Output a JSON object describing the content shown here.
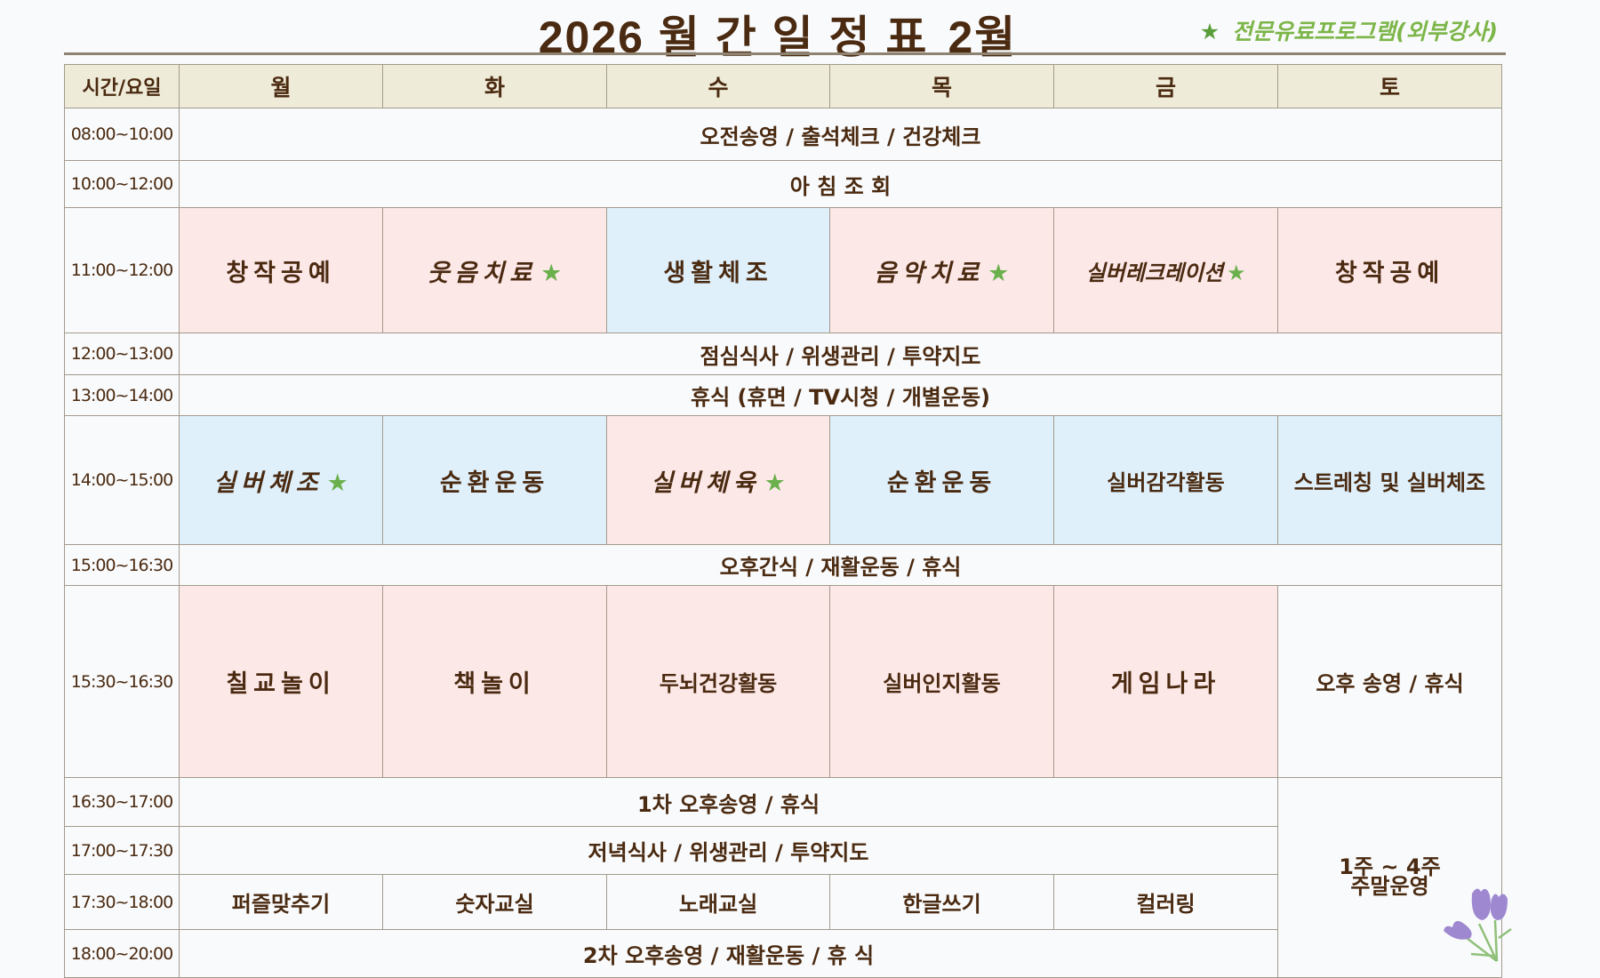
{
  "title": {
    "main": "2026 월 간 일 정 표",
    "month": "2월"
  },
  "legend": {
    "icon": "star-icon",
    "text": "전문유료프로그램(외부강사)",
    "color": "#7cb548"
  },
  "colors": {
    "pink": "#fde8e8",
    "blue": "#dff0fb",
    "header": "#efebd9",
    "text": "#4a2a10",
    "star": "#6ab04c"
  },
  "header": {
    "time_label": "시간/요일",
    "days": [
      "월",
      "화",
      "수",
      "목",
      "금",
      "토"
    ]
  },
  "rows": [
    {
      "time": "08:00~10:00",
      "h": 59,
      "cells": [
        {
          "text": "오전송영 / 출석체크 / 건강체크",
          "colspan": 6
        }
      ]
    },
    {
      "time": "10:00~12:00",
      "h": 53,
      "cells": [
        {
          "text": "아 침 조 회",
          "colspan": 6
        }
      ]
    },
    {
      "time": "11:00~12:00",
      "h": 141,
      "cells": [
        {
          "text": "창작공예",
          "bg": "pink",
          "big": true
        },
        {
          "text": "웃음치료",
          "bg": "pink",
          "big": true,
          "star": true
        },
        {
          "text": "생활체조",
          "bg": "blue",
          "big": true
        },
        {
          "text": "음악치료",
          "bg": "pink",
          "big": true,
          "star": true
        },
        {
          "text": "실버레크레이션",
          "bg": "pink",
          "star": true
        },
        {
          "text": "창작공예",
          "bg": "pink",
          "big": true
        }
      ]
    },
    {
      "time": "12:00~13:00",
      "h": 47,
      "cells": [
        {
          "text": "점심식사 / 위생관리 / 투약지도",
          "colspan": 6
        }
      ]
    },
    {
      "time": "13:00~14:00",
      "h": 46,
      "cells": [
        {
          "text": "휴식 (휴면 / TV시청 / 개별운동)",
          "colspan": 6
        }
      ]
    },
    {
      "time": "14:00~15:00",
      "h": 145,
      "cells": [
        {
          "text": "실버체조",
          "bg": "blue",
          "big": true,
          "star": true
        },
        {
          "text": "순환운동",
          "bg": "blue",
          "big": true
        },
        {
          "text": "실버체육",
          "bg": "pink",
          "big": true,
          "star": true
        },
        {
          "text": "순환운동",
          "bg": "blue",
          "big": true
        },
        {
          "text": "실버감각활동",
          "bg": "blue"
        },
        {
          "text": "스트레칭 및 실버체조",
          "bg": "blue"
        }
      ]
    },
    {
      "time": "15:00~16:30",
      "h": 46,
      "cells": [
        {
          "text": "오후간식 / 재활운동 / 휴식",
          "colspan": 6
        }
      ]
    },
    {
      "time": "15:30~16:30",
      "h": 216,
      "cells": [
        {
          "text": "칠교놀이",
          "bg": "pink",
          "big": true
        },
        {
          "text": "책놀이",
          "bg": "pink",
          "big": true
        },
        {
          "text": "두뇌건강활동",
          "bg": "pink"
        },
        {
          "text": "실버인지활동",
          "bg": "pink"
        },
        {
          "text": "게임나라",
          "bg": "pink",
          "big": true
        },
        {
          "text": "오후 송영 / 휴식"
        }
      ]
    },
    {
      "time": "16:30~17:00",
      "h": 55,
      "cells": [
        {
          "text": "1차 오후송영 / 휴식",
          "colspan": 5
        },
        {
          "text": "1주 ~ 4주\n주말운영",
          "rowspan": 4
        }
      ]
    },
    {
      "time": "17:00~17:30",
      "h": 54,
      "cells": [
        {
          "text": "저녁식사 / 위생관리 / 투약지도",
          "colspan": 5
        }
      ]
    },
    {
      "time": "17:30~18:00",
      "h": 62,
      "cells": [
        {
          "text": "퍼즐맞추기"
        },
        {
          "text": "숫자교실"
        },
        {
          "text": "노래교실"
        },
        {
          "text": "한글쓰기"
        },
        {
          "text": "컬러링"
        }
      ]
    },
    {
      "time": "18:00~20:00",
      "h": 54,
      "cells": [
        {
          "text": "2차 오후송영 / 재활운동 / 휴  식",
          "colspan": 5
        }
      ]
    }
  ]
}
